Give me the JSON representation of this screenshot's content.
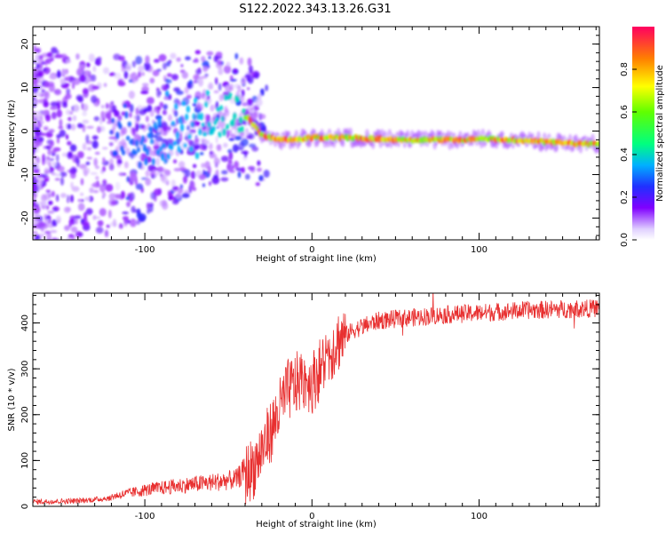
{
  "title": "S122.2022.343.13.26.G31",
  "chart_data": [
    {
      "type": "heatmap",
      "xlabel": "Height of straight line (km)",
      "ylabel": "Frequency (Hz)",
      "xlim": [
        -167,
        172
      ],
      "ylim": [
        -25,
        24
      ],
      "xticks": [
        -100,
        0,
        100
      ],
      "yticks": [
        -20,
        -10,
        0,
        10,
        20
      ],
      "ridge": {
        "description_points_x": [
          -140,
          -120,
          -100,
          -80,
          -60,
          -45,
          -38,
          -30,
          -20,
          -10,
          0,
          20,
          40,
          60,
          80,
          90,
          100,
          120,
          140,
          165
        ],
        "description_points_y": [
          -4,
          -3,
          -2,
          1,
          3,
          4,
          3,
          -1,
          -2,
          -2,
          -1.5,
          -1.5,
          -1.8,
          -2,
          -2,
          -2,
          -1.8,
          -2,
          -2.5,
          -3
        ]
      },
      "colorbar": {
        "label": "Normalized spectral amplitude",
        "range": [
          0.0,
          1.0
        ],
        "ticks": [
          0.0,
          0.2,
          0.4,
          0.6,
          0.8
        ]
      }
    },
    {
      "type": "line",
      "xlabel": "Height of straight line (km)",
      "ylabel": "SNR (10 * v/v)",
      "xlim": [
        -167,
        172
      ],
      "ylim": [
        0,
        465
      ],
      "xticks": [
        -100,
        0,
        100
      ],
      "yticks": [
        0,
        100,
        200,
        300,
        400
      ],
      "color": "#e83030",
      "trend_x": [
        -167,
        -140,
        -120,
        -100,
        -80,
        -60,
        -45,
        -35,
        -25,
        -15,
        -5,
        0,
        5,
        15,
        25,
        40,
        60,
        80,
        100,
        130,
        172
      ],
      "trend_y": [
        10,
        12,
        18,
        30,
        38,
        44,
        50,
        85,
        160,
        250,
        280,
        270,
        300,
        360,
        385,
        405,
        412,
        418,
        422,
        428,
        432
      ]
    }
  ]
}
